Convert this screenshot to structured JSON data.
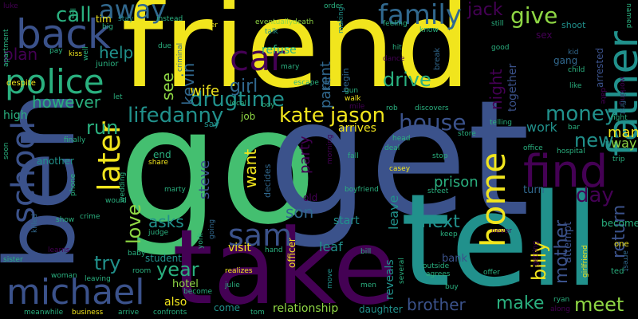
{
  "palette": {
    "background": "#000000",
    "yellow": "#f1e51d",
    "green": "#44bf70",
    "teal": "#21918c",
    "blue": "#3b528b",
    "purple": "#440154",
    "lime": "#8fd744",
    "mint": "#2ab07f",
    "slate": "#31688e"
  },
  "words": [
    {
      "text": "go"
    },
    {
      "text": "get"
    },
    {
      "text": "friend"
    },
    {
      "text": "tell"
    },
    {
      "text": "take"
    },
    {
      "text": "ben"
    },
    {
      "text": "police"
    },
    {
      "text": "back"
    },
    {
      "text": "car"
    },
    {
      "text": "find"
    },
    {
      "text": "father"
    },
    {
      "text": "michael"
    },
    {
      "text": "home"
    },
    {
      "text": "school"
    },
    {
      "text": "sam"
    },
    {
      "text": "later"
    },
    {
      "text": "drugtime"
    },
    {
      "text": "family"
    },
    {
      "text": "away"
    },
    {
      "text": "call"
    },
    {
      "text": "give"
    },
    {
      "text": "jack"
    },
    {
      "text": "drive"
    },
    {
      "text": "kate"
    },
    {
      "text": "jason"
    },
    {
      "text": "house"
    },
    {
      "text": "lifedanny"
    },
    {
      "text": "money"
    },
    {
      "text": "new"
    },
    {
      "text": "day"
    },
    {
      "text": "return"
    },
    {
      "text": "mother"
    },
    {
      "text": "billy"
    },
    {
      "text": "meet"
    },
    {
      "text": "make"
    },
    {
      "text": "brother"
    },
    {
      "text": "relationship"
    },
    {
      "text": "year"
    },
    {
      "text": "love"
    },
    {
      "text": "try"
    },
    {
      "text": "run"
    },
    {
      "text": "however"
    },
    {
      "text": "help"
    },
    {
      "text": "plan"
    },
    {
      "text": "wife"
    },
    {
      "text": "girl"
    },
    {
      "text": "kevin"
    },
    {
      "text": "see"
    },
    {
      "text": "refuse"
    },
    {
      "text": "party"
    },
    {
      "text": "want"
    },
    {
      "text": "steve"
    },
    {
      "text": "son"
    },
    {
      "text": "asks"
    },
    {
      "text": "next"
    },
    {
      "text": "prison"
    },
    {
      "text": "leave"
    },
    {
      "text": "work"
    },
    {
      "text": "man"
    },
    {
      "text": "way"
    },
    {
      "text": "night"
    },
    {
      "text": "parent"
    },
    {
      "text": "together"
    },
    {
      "text": "arrives"
    },
    {
      "text": "reveals"
    },
    {
      "text": "leaf"
    },
    {
      "text": "visit"
    },
    {
      "text": "also"
    },
    {
      "text": "come"
    },
    {
      "text": "hotel"
    },
    {
      "text": "student"
    },
    {
      "text": "job"
    },
    {
      "text": "kill"
    },
    {
      "text": "decides"
    },
    {
      "text": "old"
    },
    {
      "text": "begin"
    },
    {
      "text": "high"
    },
    {
      "text": "tim"
    },
    {
      "text": "end"
    },
    {
      "text": "say"
    },
    {
      "text": "bank"
    },
    {
      "text": "start"
    },
    {
      "text": "turn"
    },
    {
      "text": "attempt"
    },
    {
      "text": "becomes"
    },
    {
      "text": "arrested"
    },
    {
      "text": "gang"
    },
    {
      "text": "sex"
    },
    {
      "text": "shoot"
    },
    {
      "text": "another"
    },
    {
      "text": "officer"
    },
    {
      "text": "daughter"
    },
    {
      "text": "apartment"
    },
    {
      "text": "despite"
    },
    {
      "text": "kiss"
    },
    {
      "text": "pay"
    },
    {
      "text": "junior"
    },
    {
      "text": "stay"
    },
    {
      "text": "instead"
    },
    {
      "text": "murder"
    },
    {
      "text": "criminal"
    },
    {
      "text": "eventuallydeath"
    },
    {
      "text": "order"
    },
    {
      "text": "making"
    },
    {
      "text": "feeling"
    },
    {
      "text": "still"
    },
    {
      "text": "named"
    },
    {
      "text": "talk"
    },
    {
      "text": "know"
    },
    {
      "text": "hit"
    },
    {
      "text": "dance"
    },
    {
      "text": "break"
    },
    {
      "text": "good"
    },
    {
      "text": "kid"
    },
    {
      "text": "child"
    },
    {
      "text": "like"
    },
    {
      "text": "working"
    },
    {
      "text": "first"
    },
    {
      "text": "fight"
    },
    {
      "text": "trip"
    },
    {
      "text": "arrest"
    },
    {
      "text": "one"
    },
    {
      "text": "ted"
    },
    {
      "text": "girlfriend"
    },
    {
      "text": "ryan"
    },
    {
      "text": "along"
    },
    {
      "text": "offer"
    },
    {
      "text": "never"
    },
    {
      "text": "getting"
    },
    {
      "text": "keep"
    },
    {
      "text": "buy"
    },
    {
      "text": "agrees"
    },
    {
      "text": "outside"
    },
    {
      "text": "several"
    },
    {
      "text": "men"
    },
    {
      "text": "move"
    },
    {
      "text": "bill"
    },
    {
      "text": "realizes"
    },
    {
      "text": "julie"
    },
    {
      "text": "tom"
    },
    {
      "text": "become"
    },
    {
      "text": "room"
    },
    {
      "text": "confronts"
    },
    {
      "text": "arrive"
    },
    {
      "text": "business"
    },
    {
      "text": "meanwhile"
    },
    {
      "text": "leaving"
    },
    {
      "text": "woman"
    },
    {
      "text": "sister"
    },
    {
      "text": "learns"
    },
    {
      "text": "killed"
    },
    {
      "text": "show"
    },
    {
      "text": "crime"
    },
    {
      "text": "would"
    },
    {
      "text": "baby"
    },
    {
      "text": "judge"
    },
    {
      "text": "marty"
    },
    {
      "text": "share"
    },
    {
      "text": "wedding"
    },
    {
      "text": "phone"
    },
    {
      "text": "finally"
    },
    {
      "text": "soon"
    },
    {
      "text": "boyfriend"
    },
    {
      "text": "casey"
    },
    {
      "text": "street"
    },
    {
      "text": "stop"
    },
    {
      "text": "fall"
    },
    {
      "text": "deal"
    },
    {
      "text": "head"
    },
    {
      "text": "store"
    },
    {
      "text": "telling"
    },
    {
      "text": "office"
    },
    {
      "text": "hospital"
    },
    {
      "text": "bar"
    },
    {
      "text": "discovers"
    },
    {
      "text": "rob"
    },
    {
      "text": "walk"
    },
    {
      "text": "gun"
    },
    {
      "text": "escape"
    },
    {
      "text": "mary"
    },
    {
      "text": "local"
    },
    {
      "text": "boy"
    },
    {
      "text": "let"
    },
    {
      "text": "well"
    },
    {
      "text": "due"
    },
    {
      "text": "big"
    },
    {
      "text": "lee"
    },
    {
      "text": "luke"
    },
    {
      "text": "date"
    },
    {
      "text": "morning"
    },
    {
      "text": "going"
    },
    {
      "text": "york"
    },
    {
      "text": "hand"
    },
    {
      "text": "mile"
    }
  ]
}
